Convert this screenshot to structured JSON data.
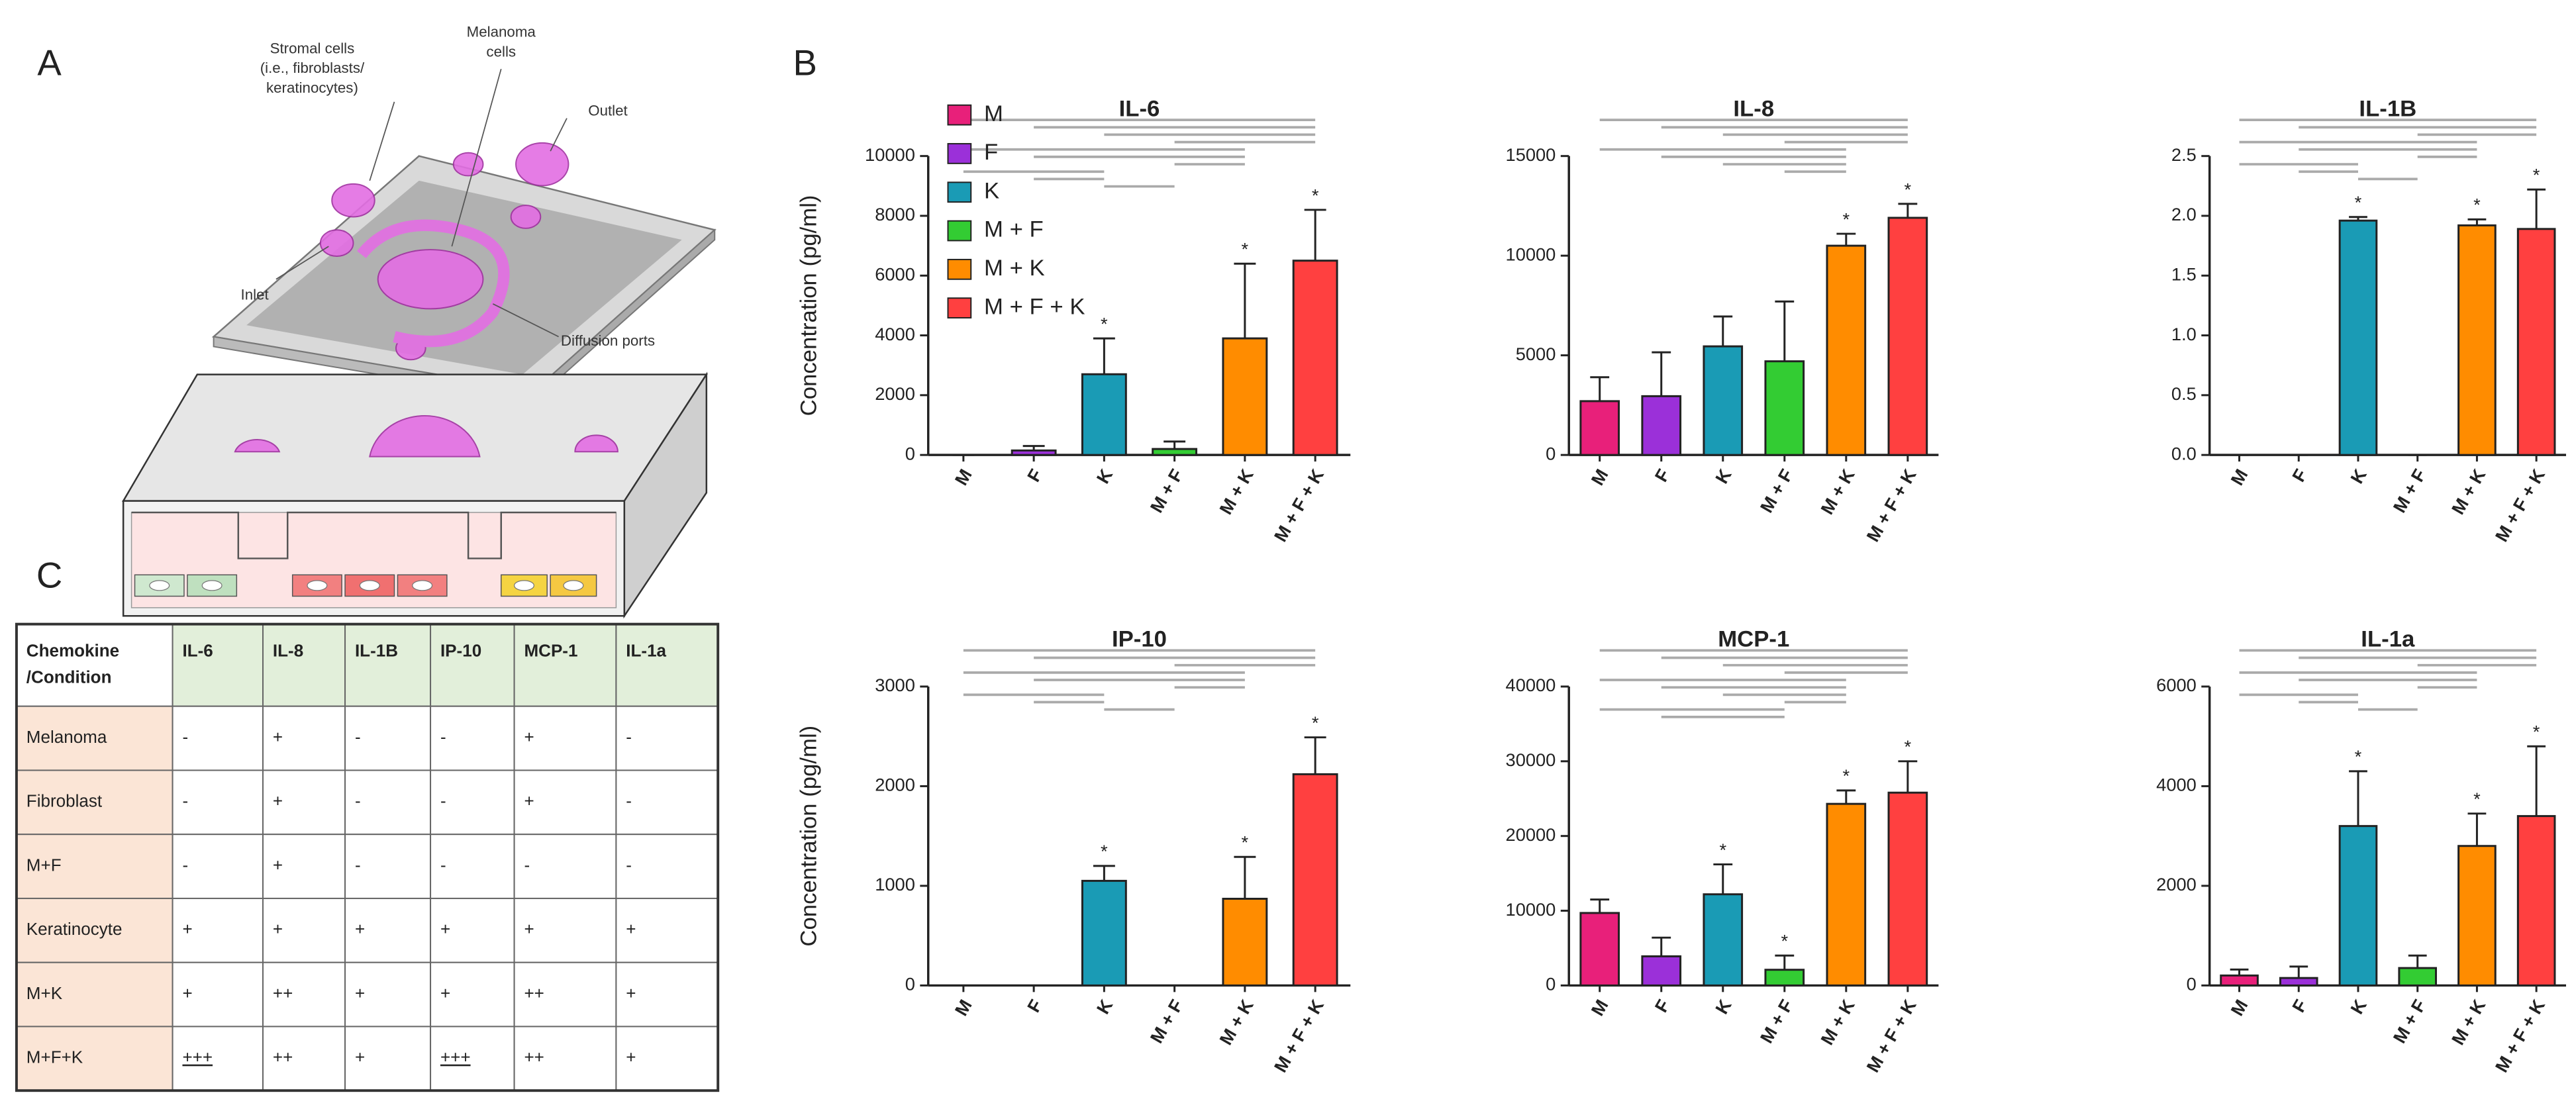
{
  "panel_labels": [
    "A",
    "B",
    "C"
  ],
  "diagram": {
    "stromal_cells": [
      "Stromal cells",
      "(i.e., fibroblasts/",
      "keratinocytes)"
    ],
    "melanoma_cells": [
      "Melanoma",
      "cells"
    ],
    "outlet": "Outlet",
    "inlet": "Inlet",
    "diffusion_ports": "Diffusion ports"
  },
  "table": {
    "header": [
      [
        "Chemokine",
        "/Condition"
      ],
      "IL-6",
      "IL-8",
      "IL-1B",
      "IP-10",
      "MCP-1",
      "IL-1a"
    ],
    "rows": [
      [
        "Melanoma",
        "-",
        "+",
        "-",
        "-",
        "+",
        "-"
      ],
      [
        "Fibroblast",
        "-",
        "+",
        "-",
        "-",
        "+",
        "-"
      ],
      [
        "M+F",
        "-",
        "+",
        "-",
        "-",
        "-",
        "-"
      ],
      [
        "Keratinocyte",
        "+",
        "+",
        "+",
        "+",
        "+",
        "+"
      ],
      [
        "M+K",
        "+",
        "++",
        "+",
        "+",
        "++",
        "+"
      ],
      [
        "M+F+K",
        "+++",
        "++",
        "+",
        "+++",
        "++",
        "+"
      ]
    ]
  },
  "chart_data": [
    {
      "type": "bar",
      "title": "IL-6",
      "ylabel": "Concentration (pg/ml)",
      "legend": "top-left",
      "categories": [
        "M",
        "F",
        "K",
        "M + F",
        "M + K",
        "M + F + K"
      ],
      "colors": [
        "#e8207a",
        "#9b30d9",
        "#1a9bb5",
        "#33cc33",
        "#ff8c00",
        "#ff4040"
      ],
      "values": [
        0,
        150,
        2700,
        200,
        3900,
        6500
      ],
      "errors": [
        0,
        150,
        1200,
        250,
        2500,
        1700
      ],
      "stars": [
        null,
        null,
        "*",
        null,
        "*",
        "*"
      ],
      "ylim": [
        0,
        10000
      ],
      "yticks": [
        0,
        2000,
        4000,
        6000,
        8000,
        10000
      ],
      "comparisons": [
        [
          0,
          5
        ],
        [
          1,
          5
        ],
        [
          2,
          5
        ],
        [
          3,
          5
        ],
        [
          0,
          4
        ],
        [
          1,
          4
        ],
        [
          3,
          4
        ],
        [
          0,
          2
        ],
        [
          1,
          2
        ],
        [
          2,
          3
        ]
      ]
    },
    {
      "type": "bar",
      "title": "IL-8",
      "categories": [
        "M",
        "F",
        "K",
        "M + F",
        "M + K",
        "M + F + K"
      ],
      "colors": [
        "#e8207a",
        "#9b30d9",
        "#1a9bb5",
        "#33cc33",
        "#ff8c00",
        "#ff4040"
      ],
      "values": [
        2700,
        2950,
        5450,
        4700,
        10500,
        11900
      ],
      "errors": [
        1200,
        2200,
        1500,
        3000,
        600,
        700
      ],
      "stars": [
        null,
        null,
        null,
        null,
        "*",
        "*"
      ],
      "ylim": [
        0,
        15000
      ],
      "yticks": [
        0,
        5000,
        10000,
        15000
      ],
      "comparisons": [
        [
          0,
          5
        ],
        [
          1,
          5
        ],
        [
          2,
          5
        ],
        [
          3,
          5
        ],
        [
          0,
          4
        ],
        [
          1,
          4
        ],
        [
          2,
          4
        ],
        [
          3,
          4
        ]
      ]
    },
    {
      "type": "bar",
      "title": "IL-1B",
      "categories": [
        "M",
        "F",
        "K",
        "M + F",
        "M + K",
        "M + F + K"
      ],
      "colors": [
        "#e8207a",
        "#9b30d9",
        "#1a9bb5",
        "#33cc33",
        "#ff8c00",
        "#ff4040"
      ],
      "values": [
        0,
        0,
        1.96,
        0,
        1.92,
        1.89
      ],
      "errors": [
        0,
        0,
        0.03,
        0,
        0.05,
        0.33
      ],
      "stars": [
        null,
        null,
        "*",
        null,
        "*",
        "*"
      ],
      "ylim": [
        0,
        2.5
      ],
      "yticks": [
        {
          "value": 0,
          "label": "0.0"
        },
        0.5,
        {
          "value": 1,
          "label": "1.0"
        },
        1.5,
        {
          "value": 2,
          "label": "2.0"
        },
        2.5
      ],
      "comparisons": [
        [
          0,
          5
        ],
        [
          1,
          5
        ],
        [
          3,
          5
        ],
        [
          0,
          4
        ],
        [
          1,
          4
        ],
        [
          3,
          4
        ],
        [
          0,
          2
        ],
        [
          1,
          2
        ],
        [
          2,
          3
        ]
      ]
    },
    {
      "type": "bar",
      "title": "IP-10",
      "ylabel": "Concentration (pg/ml)",
      "categories": [
        "M",
        "F",
        "K",
        "M + F",
        "M + K",
        "M + F + K"
      ],
      "colors": [
        "#e8207a",
        "#9b30d9",
        "#1a9bb5",
        "#33cc33",
        "#ff8c00",
        "#ff4040"
      ],
      "values": [
        0,
        0,
        1050,
        0,
        870,
        2120
      ],
      "errors": [
        0,
        0,
        150,
        0,
        420,
        370
      ],
      "stars": [
        null,
        null,
        "*",
        null,
        "*",
        "*"
      ],
      "ylim": [
        0,
        3000
      ],
      "yticks": [
        0,
        1000,
        2000,
        3000
      ],
      "comparisons": [
        [
          0,
          5
        ],
        [
          1,
          5
        ],
        [
          3,
          5
        ],
        [
          0,
          4
        ],
        [
          1,
          4
        ],
        [
          3,
          4
        ],
        [
          0,
          2
        ],
        [
          1,
          2
        ],
        [
          2,
          3
        ]
      ]
    },
    {
      "type": "bar",
      "title": "MCP-1",
      "categories": [
        "M",
        "F",
        "K",
        "M + F",
        "M + K",
        "M + F + K"
      ],
      "colors": [
        "#e8207a",
        "#9b30d9",
        "#1a9bb5",
        "#33cc33",
        "#ff8c00",
        "#ff4040"
      ],
      "values": [
        9700,
        3900,
        12200,
        2100,
        24300,
        25800
      ],
      "errors": [
        1800,
        2500,
        4000,
        1900,
        1800,
        4200
      ],
      "stars": [
        null,
        null,
        "*",
        "*",
        "*",
        "*"
      ],
      "ylim": [
        0,
        40000
      ],
      "yticks": [
        0,
        10000,
        20000,
        30000,
        40000
      ],
      "comparisons": [
        [
          0,
          5
        ],
        [
          1,
          5
        ],
        [
          2,
          5
        ],
        [
          3,
          5
        ],
        [
          0,
          4
        ],
        [
          1,
          4
        ],
        [
          2,
          4
        ],
        [
          3,
          4
        ],
        [
          0,
          3
        ],
        [
          1,
          3
        ]
      ]
    },
    {
      "type": "bar",
      "title": "IL-1a",
      "categories": [
        "M",
        "F",
        "K",
        "M + F",
        "M + K",
        "M + F + K"
      ],
      "colors": [
        "#e8207a",
        "#9b30d9",
        "#1a9bb5",
        "#33cc33",
        "#ff8c00",
        "#ff4040"
      ],
      "values": [
        200,
        150,
        3200,
        350,
        2800,
        3400
      ],
      "errors": [
        120,
        230,
        1100,
        250,
        650,
        1400
      ],
      "stars": [
        null,
        null,
        "*",
        null,
        "*",
        "*"
      ],
      "ylim": [
        0,
        6000
      ],
      "yticks": [
        0,
        2000,
        4000,
        6000
      ],
      "comparisons": [
        [
          0,
          5
        ],
        [
          1,
          5
        ],
        [
          3,
          5
        ],
        [
          0,
          4
        ],
        [
          1,
          4
        ],
        [
          3,
          4
        ],
        [
          0,
          2
        ],
        [
          1,
          2
        ],
        [
          2,
          3
        ]
      ]
    }
  ]
}
